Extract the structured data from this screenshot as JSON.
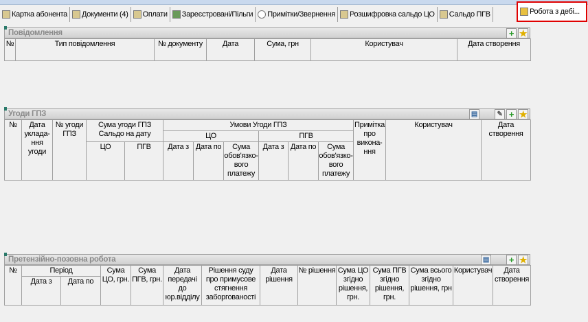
{
  "tabs": [
    {
      "label": "Картка абонента",
      "icon": "card-icon"
    },
    {
      "label": "Документи (4)",
      "icon": "documents-icon"
    },
    {
      "label": "Оплати",
      "icon": "payments-icon"
    },
    {
      "label": "Зареєстровані/Пільги",
      "icon": "person-icon"
    },
    {
      "label": "Примітки/Звернення",
      "icon": "speech-bubble-icon"
    },
    {
      "label": "Розшифровка сальдо ЦО",
      "icon": "calculator-icon"
    },
    {
      "label": "Сальдо ПГВ",
      "icon": "calculator-icon"
    },
    {
      "label": "Робота з дебі...",
      "icon": "debt-icon",
      "active": true
    }
  ],
  "notifications": {
    "title": "Повідомлення",
    "columns": [
      "№",
      "Тип повідомлення",
      "№ документу",
      "Дата",
      "Сума, грн",
      "Користувач",
      "Дата створення"
    ]
  },
  "agreements": {
    "title": "Угоди ГПЗ",
    "h": {
      "num": "№",
      "date": "Дата уклада-ння угоди",
      "agr_num": "№ угоди ГПЗ",
      "sum": "Сума угоди ГПЗ Сальдо на дату",
      "cond": "Умови Угоди ГПЗ",
      "co": "ЦО",
      "pgv": "ПГВ",
      "note": "Примітка про викона-ння",
      "user": "Користувач",
      "created": "Дата створення",
      "sum_co": "ЦО",
      "sum_pgv": "ПГВ",
      "from": "Дата з",
      "to": "Дата по",
      "pay": "Сума обов'язко-вого платежу"
    }
  },
  "claims": {
    "title": "Претензійно-позовна робота",
    "h": {
      "num": "№",
      "period": "Період",
      "from": "Дата з",
      "to": "Дата по",
      "sum_co": "Сума ЦО, грн.",
      "sum_pgv": "Сума ПГВ, грн.",
      "transfer": "Дата передачі до юр.відділу",
      "court": "Рішення суду про примусове стягнення заборгованості",
      "dec_date": "Дата рішення",
      "dec_num": "№ рішення",
      "dec_co": "Сума ЦО згідно рішення, грн.",
      "dec_pgv": "Сума ПГВ згідно рішення, грн.",
      "dec_total": "Сума всього згідно рішення, грн",
      "user": "Користувач",
      "created": "Дата створення"
    }
  }
}
